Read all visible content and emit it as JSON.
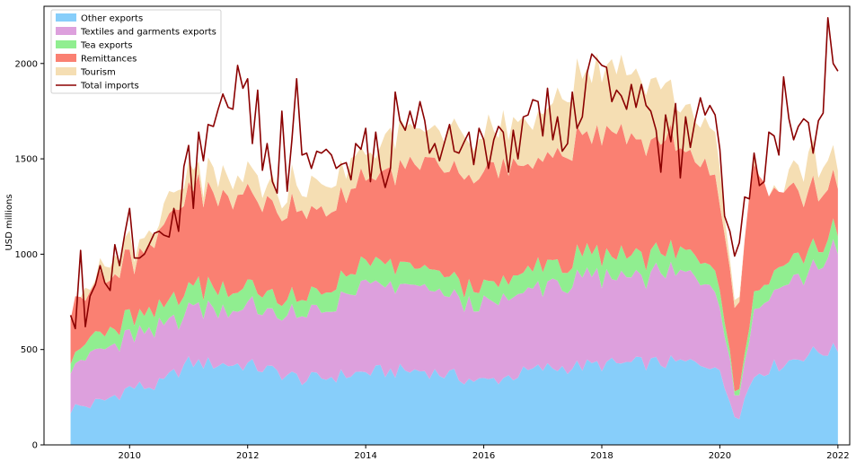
{
  "chart_data": {
    "type": "area",
    "stacked": true,
    "ylabel": "USD millions",
    "xlabel": "",
    "ylim": [
      0,
      2300
    ],
    "xlim": [
      2008.55,
      2022.2
    ],
    "x_range": [
      2009.0,
      2022.0
    ],
    "yticks": [
      0,
      500,
      1000,
      1500,
      2000
    ],
    "xticks": [
      2010,
      2012,
      2014,
      2016,
      2018,
      2020,
      2022
    ],
    "legend_position": "top-left",
    "series": [
      {
        "name": "Other exports",
        "color": "#87CEFA",
        "keypoints": [
          [
            2009.0,
            190
          ],
          [
            2009.5,
            220
          ],
          [
            2010.0,
            300
          ],
          [
            2010.5,
            310
          ],
          [
            2011.0,
            430
          ],
          [
            2012.0,
            420
          ],
          [
            2013.0,
            340
          ],
          [
            2014.0,
            380
          ],
          [
            2015.0,
            390
          ],
          [
            2016.0,
            330
          ],
          [
            2017.0,
            400
          ],
          [
            2018.0,
            420
          ],
          [
            2019.0,
            430
          ],
          [
            2019.9,
            430
          ],
          [
            2020.3,
            150
          ],
          [
            2020.6,
            380
          ],
          [
            2021.0,
            420
          ],
          [
            2021.5,
            480
          ],
          [
            2022.0,
            500
          ]
        ],
        "jitter": 40
      },
      {
        "name": "Textiles and garments exports",
        "color": "#DDA0DD",
        "keypoints": [
          [
            2009.0,
            250
          ],
          [
            2009.5,
            260
          ],
          [
            2010.0,
            270
          ],
          [
            2010.5,
            280
          ],
          [
            2011.0,
            290
          ],
          [
            2012.0,
            300
          ],
          [
            2013.0,
            320
          ],
          [
            2014.0,
            450
          ],
          [
            2015.0,
            430
          ],
          [
            2016.0,
            390
          ],
          [
            2017.0,
            430
          ],
          [
            2018.0,
            450
          ],
          [
            2019.0,
            470
          ],
          [
            2019.9,
            450
          ],
          [
            2020.3,
            100
          ],
          [
            2020.6,
            350
          ],
          [
            2021.0,
            420
          ],
          [
            2021.5,
            430
          ],
          [
            2022.0,
            520
          ]
        ],
        "jitter": 45
      },
      {
        "name": "Tea exports",
        "color": "#90EE90",
        "keypoints": [
          [
            2009.0,
            60
          ],
          [
            2010.0,
            100
          ],
          [
            2011.0,
            120
          ],
          [
            2012.0,
            100
          ],
          [
            2013.0,
            90
          ],
          [
            2014.0,
            110
          ],
          [
            2015.0,
            100
          ],
          [
            2016.0,
            90
          ],
          [
            2017.0,
            110
          ],
          [
            2018.0,
            120
          ],
          [
            2019.0,
            110
          ],
          [
            2019.9,
            100
          ],
          [
            2020.3,
            15
          ],
          [
            2020.6,
            80
          ],
          [
            2021.0,
            100
          ],
          [
            2022.0,
            100
          ]
        ],
        "jitter": 20
      },
      {
        "name": "Remittances",
        "color": "#FA8072",
        "keypoints": [
          [
            2009.0,
            260
          ],
          [
            2009.5,
            280
          ],
          [
            2010.0,
            300
          ],
          [
            2010.5,
            380
          ],
          [
            2011.0,
            500
          ],
          [
            2012.0,
            480
          ],
          [
            2013.0,
            450
          ],
          [
            2014.0,
            420
          ],
          [
            2015.0,
            560
          ],
          [
            2016.0,
            600
          ],
          [
            2017.0,
            560
          ],
          [
            2018.0,
            630
          ],
          [
            2019.0,
            580
          ],
          [
            2019.9,
            500
          ],
          [
            2020.3,
            390
          ],
          [
            2020.5,
            700
          ],
          [
            2021.0,
            400
          ],
          [
            2021.5,
            300
          ],
          [
            2022.0,
            250
          ]
        ],
        "jitter": 45
      },
      {
        "name": "Tourism",
        "color": "#F5DEB3",
        "keypoints": [
          [
            2009.0,
            30
          ],
          [
            2010.0,
            60
          ],
          [
            2011.0,
            80
          ],
          [
            2012.0,
            90
          ],
          [
            2013.0,
            120
          ],
          [
            2014.0,
            160
          ],
          [
            2015.0,
            180
          ],
          [
            2016.0,
            200
          ],
          [
            2017.0,
            250
          ],
          [
            2018.0,
            360
          ],
          [
            2019.0,
            330
          ],
          [
            2019.3,
            200
          ],
          [
            2019.9,
            250
          ],
          [
            2020.3,
            0
          ],
          [
            2021.0,
            0
          ],
          [
            2021.5,
            150
          ],
          [
            2022.0,
            140
          ]
        ],
        "jitter": 50
      }
    ],
    "line_series": {
      "name": "Total imports",
      "color": "#8B0000",
      "points": [
        [
          2009.0,
          680
        ],
        [
          2009.08,
          610
        ],
        [
          2009.17,
          1020
        ],
        [
          2009.25,
          620
        ],
        [
          2009.33,
          780
        ],
        [
          2009.42,
          840
        ],
        [
          2009.5,
          940
        ],
        [
          2009.58,
          850
        ],
        [
          2009.67,
          810
        ],
        [
          2009.75,
          1050
        ],
        [
          2009.83,
          940
        ],
        [
          2009.92,
          1110
        ],
        [
          2010.0,
          1240
        ],
        [
          2010.08,
          980
        ],
        [
          2010.17,
          980
        ],
        [
          2010.25,
          1000
        ],
        [
          2010.33,
          1050
        ],
        [
          2010.42,
          1110
        ],
        [
          2010.5,
          1120
        ],
        [
          2010.58,
          1100
        ],
        [
          2010.67,
          1090
        ],
        [
          2010.75,
          1240
        ],
        [
          2010.83,
          1120
        ],
        [
          2010.92,
          1460
        ],
        [
          2011.0,
          1570
        ],
        [
          2011.08,
          1240
        ],
        [
          2011.17,
          1640
        ],
        [
          2011.25,
          1490
        ],
        [
          2011.33,
          1680
        ],
        [
          2011.42,
          1670
        ],
        [
          2011.5,
          1760
        ],
        [
          2011.58,
          1840
        ],
        [
          2011.67,
          1770
        ],
        [
          2011.75,
          1760
        ],
        [
          2011.83,
          1990
        ],
        [
          2011.92,
          1870
        ],
        [
          2012.0,
          1920
        ],
        [
          2012.08,
          1580
        ],
        [
          2012.17,
          1860
        ],
        [
          2012.25,
          1440
        ],
        [
          2012.33,
          1580
        ],
        [
          2012.42,
          1380
        ],
        [
          2012.5,
          1320
        ],
        [
          2012.58,
          1750
        ],
        [
          2012.67,
          1330
        ],
        [
          2012.75,
          1600
        ],
        [
          2012.83,
          1920
        ],
        [
          2012.92,
          1520
        ],
        [
          2013.0,
          1530
        ],
        [
          2013.08,
          1450
        ],
        [
          2013.17,
          1540
        ],
        [
          2013.25,
          1530
        ],
        [
          2013.33,
          1550
        ],
        [
          2013.42,
          1520
        ],
        [
          2013.5,
          1450
        ],
        [
          2013.58,
          1470
        ],
        [
          2013.67,
          1480
        ],
        [
          2013.75,
          1390
        ],
        [
          2013.83,
          1580
        ],
        [
          2013.92,
          1550
        ],
        [
          2014.0,
          1660
        ],
        [
          2014.08,
          1380
        ],
        [
          2014.17,
          1640
        ],
        [
          2014.25,
          1450
        ],
        [
          2014.33,
          1350
        ],
        [
          2014.42,
          1450
        ],
        [
          2014.5,
          1850
        ],
        [
          2014.58,
          1700
        ],
        [
          2014.67,
          1650
        ],
        [
          2014.75,
          1750
        ],
        [
          2014.83,
          1660
        ],
        [
          2014.92,
          1800
        ],
        [
          2015.0,
          1700
        ],
        [
          2015.08,
          1530
        ],
        [
          2015.17,
          1580
        ],
        [
          2015.25,
          1490
        ],
        [
          2015.33,
          1580
        ],
        [
          2015.42,
          1680
        ],
        [
          2015.5,
          1540
        ],
        [
          2015.58,
          1530
        ],
        [
          2015.67,
          1590
        ],
        [
          2015.75,
          1640
        ],
        [
          2015.83,
          1470
        ],
        [
          2015.92,
          1660
        ],
        [
          2016.0,
          1600
        ],
        [
          2016.08,
          1450
        ],
        [
          2016.17,
          1600
        ],
        [
          2016.25,
          1670
        ],
        [
          2016.33,
          1640
        ],
        [
          2016.42,
          1430
        ],
        [
          2016.5,
          1650
        ],
        [
          2016.58,
          1500
        ],
        [
          2016.67,
          1720
        ],
        [
          2016.75,
          1730
        ],
        [
          2016.83,
          1810
        ],
        [
          2016.92,
          1800
        ],
        [
          2017.0,
          1620
        ],
        [
          2017.08,
          1870
        ],
        [
          2017.17,
          1600
        ],
        [
          2017.25,
          1720
        ],
        [
          2017.33,
          1540
        ],
        [
          2017.42,
          1580
        ],
        [
          2017.5,
          1850
        ],
        [
          2017.58,
          1660
        ],
        [
          2017.67,
          1720
        ],
        [
          2017.75,
          1950
        ],
        [
          2017.83,
          2050
        ],
        [
          2017.92,
          2020
        ],
        [
          2018.0,
          1990
        ],
        [
          2018.08,
          1980
        ],
        [
          2018.17,
          1800
        ],
        [
          2018.25,
          1860
        ],
        [
          2018.33,
          1830
        ],
        [
          2018.42,
          1760
        ],
        [
          2018.5,
          1890
        ],
        [
          2018.58,
          1770
        ],
        [
          2018.67,
          1890
        ],
        [
          2018.75,
          1780
        ],
        [
          2018.83,
          1750
        ],
        [
          2018.92,
          1650
        ],
        [
          2019.0,
          1430
        ],
        [
          2019.08,
          1730
        ],
        [
          2019.17,
          1590
        ],
        [
          2019.25,
          1790
        ],
        [
          2019.33,
          1400
        ],
        [
          2019.42,
          1720
        ],
        [
          2019.5,
          1560
        ],
        [
          2019.58,
          1700
        ],
        [
          2019.67,
          1820
        ],
        [
          2019.75,
          1730
        ],
        [
          2019.83,
          1780
        ],
        [
          2019.92,
          1730
        ],
        [
          2020.0,
          1550
        ],
        [
          2020.08,
          1200
        ],
        [
          2020.17,
          1120
        ],
        [
          2020.25,
          990
        ],
        [
          2020.33,
          1060
        ],
        [
          2020.42,
          1300
        ],
        [
          2020.5,
          1290
        ],
        [
          2020.58,
          1530
        ],
        [
          2020.67,
          1360
        ],
        [
          2020.75,
          1380
        ],
        [
          2020.83,
          1640
        ],
        [
          2020.92,
          1620
        ],
        [
          2021.0,
          1520
        ],
        [
          2021.08,
          1930
        ],
        [
          2021.17,
          1710
        ],
        [
          2021.25,
          1600
        ],
        [
          2021.33,
          1670
        ],
        [
          2021.42,
          1710
        ],
        [
          2021.5,
          1690
        ],
        [
          2021.58,
          1530
        ],
        [
          2021.67,
          1700
        ],
        [
          2021.75,
          1740
        ],
        [
          2021.83,
          2240
        ],
        [
          2021.92,
          2000
        ],
        [
          2022.0,
          1960
        ]
      ]
    }
  }
}
